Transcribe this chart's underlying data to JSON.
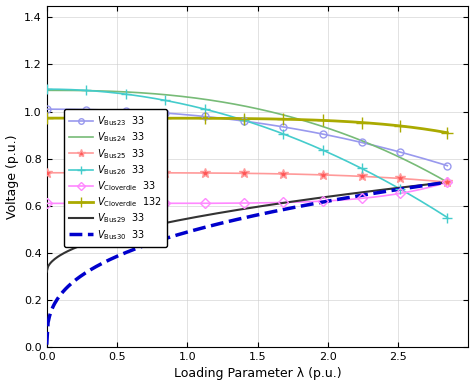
{
  "title": "",
  "xlabel": "Loading Parameter λ (p.u.)",
  "ylabel": "Voltage (p.u.)",
  "xlim": [
    0,
    3.0
  ],
  "ylim": [
    0,
    1.45
  ],
  "xticks": [
    0,
    0.5,
    1.0,
    1.5,
    2.0,
    2.5
  ],
  "yticks": [
    0,
    0.2,
    0.4,
    0.6,
    0.8,
    1.0,
    1.2,
    1.4
  ],
  "lambda_max": 2.85,
  "figsize": [
    4.74,
    3.86
  ],
  "dpi": 100,
  "background_color": "#ffffff",
  "legend_fontsize": 7,
  "axis_fontsize": 9,
  "tick_fontsize": 8,
  "series": [
    {
      "name": "Bus23_33",
      "label_sub": "Bus 23",
      "label_end": "33",
      "color": "#9999ee",
      "linestyle": "-",
      "linewidth": 1.2,
      "marker": "o",
      "markersize": 5,
      "markerfacecolor": "none",
      "upper": true,
      "v0": 1.01,
      "v_nose": 0.77,
      "drop_power": 2.2
    },
    {
      "name": "Bus24_33",
      "label_sub": "Bus 24",
      "label_end": "33",
      "color": "#77bb77",
      "linestyle": "-",
      "linewidth": 1.2,
      "marker": "",
      "markersize": 5,
      "markerfacecolor": "none",
      "upper": true,
      "v0": 1.09,
      "v_nose": 0.7,
      "drop_power": 2.5
    },
    {
      "name": "Bus25_33",
      "label_sub": "Bus 25",
      "label_end": "33",
      "color": "#ff9999",
      "linestyle": "-",
      "linewidth": 1.2,
      "marker": "*",
      "markersize": 7,
      "markerfacecolor": "#ff5555",
      "upper": true,
      "v0": 0.74,
      "v_nose": 0.7,
      "drop_power": 4.0
    },
    {
      "name": "Bus26_33",
      "label_sub": "Bus 26",
      "label_end": "33",
      "color": "#44cccc",
      "linestyle": "-",
      "linewidth": 1.2,
      "marker": "+",
      "markersize": 7,
      "markerfacecolor": "#44cccc",
      "upper": true,
      "v0": 1.095,
      "v_nose": 0.55,
      "drop_power": 2.0
    },
    {
      "name": "Cloverdie33",
      "label_sub": "Cloverdie",
      "label_end": "33",
      "color": "#ff88ff",
      "linestyle": "-",
      "linewidth": 1.2,
      "marker": "D",
      "markersize": 5,
      "markerfacecolor": "none",
      "upper": true,
      "v0": 0.61,
      "v_nose": 0.7,
      "drop_power": 6.0
    },
    {
      "name": "Cloverdie132",
      "label_sub": "Cloverdie",
      "label_end": "132",
      "color": "#aaaa00",
      "linestyle": "-",
      "linewidth": 2.0,
      "marker": "+",
      "markersize": 8,
      "markerfacecolor": "#aaaa00",
      "upper": true,
      "v0": 0.972,
      "v_nose": 0.91,
      "drop_power": 5.0
    },
    {
      "name": "Bus29_33",
      "label_sub": "Bus 29",
      "label_end": "33",
      "color": "#333333",
      "linestyle": "-",
      "linewidth": 1.5,
      "marker": "",
      "markersize": 5,
      "markerfacecolor": "none",
      "upper": false,
      "v0": 0.32,
      "v_nose": 0.7,
      "drop_power": 0.5
    },
    {
      "name": "Bus30_33",
      "label_sub": "Bus 30",
      "label_end": "33",
      "color": "#0000cc",
      "linestyle": "--",
      "linewidth": 2.5,
      "marker": "",
      "markersize": 5,
      "markerfacecolor": "none",
      "upper": false,
      "v0": 0.01,
      "v_nose": 0.7,
      "drop_power": 0.35
    }
  ],
  "marker_lams": [
    0.0,
    0.28,
    0.56,
    0.84,
    1.12,
    1.4,
    1.68,
    1.96,
    2.24,
    2.52,
    2.85
  ]
}
